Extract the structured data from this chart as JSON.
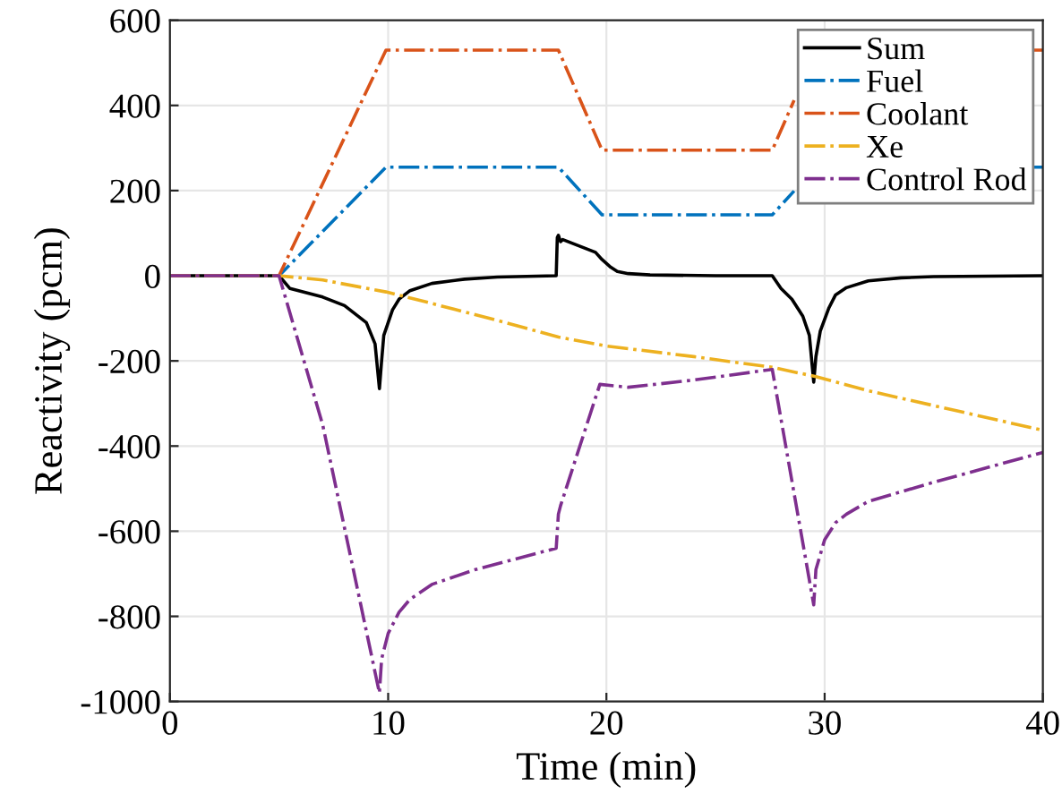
{
  "chart_data": {
    "type": "line",
    "xlabel": "Time (min)",
    "ylabel": "Reactivity (pcm)",
    "xlim": [
      0,
      40
    ],
    "ylim": [
      -1000,
      600
    ],
    "xticks": [
      0,
      10,
      20,
      30,
      40
    ],
    "yticks": [
      -1000,
      -800,
      -600,
      -400,
      -200,
      0,
      200,
      400,
      600
    ],
    "grid": true,
    "legend": "top right",
    "marker": "none",
    "series": [
      {
        "name": "Sum",
        "color": "#000000",
        "line_style": "solid",
        "x": [
          0,
          5,
          5.5,
          7,
          8,
          9,
          9.4,
          9.6,
          9.7,
          9.8,
          10.2,
          10.5,
          11,
          12,
          13.5,
          15,
          17.7,
          17.75,
          17.8,
          17.9,
          18,
          18.5,
          19,
          19.5,
          19.8,
          20.2,
          20.5,
          21,
          22,
          25,
          27.6,
          28,
          28.5,
          29,
          29.3,
          29.5,
          29.6,
          29.8,
          30.2,
          30.5,
          31,
          32,
          33.5,
          35,
          40
        ],
        "values": [
          0,
          0,
          -30,
          -50,
          -70,
          -110,
          -160,
          -265,
          -200,
          -140,
          -80,
          -55,
          -35,
          -18,
          -8,
          -3,
          0,
          90,
          95,
          80,
          85,
          75,
          65,
          55,
          38,
          20,
          10,
          5,
          2,
          0,
          0,
          -30,
          -55,
          -95,
          -140,
          -250,
          -190,
          -130,
          -75,
          -45,
          -28,
          -12,
          -5,
          -2,
          0
        ]
      },
      {
        "name": "Fuel",
        "color": "#0072bd",
        "line_style": "dashed",
        "x": [
          0,
          5,
          9.9,
          17.8,
          19.8,
          27.6,
          28.6,
          29.6,
          39.6,
          40
        ],
        "values": [
          0,
          0,
          255,
          255,
          143,
          143,
          199,
          null,
          255,
          255
        ]
      },
      {
        "name": "Coolant",
        "color": "#d95319",
        "line_style": "dashed",
        "x": [
          0,
          5,
          9.9,
          17.8,
          19.8,
          27.6,
          28.6,
          29.6,
          39.6,
          40
        ],
        "values": [
          0,
          0,
          530,
          530,
          295,
          295,
          412,
          null,
          530,
          530
        ]
      },
      {
        "name": "Xe",
        "color": "#edb120",
        "line_style": "dashed",
        "x": [
          0,
          5,
          7,
          9.9,
          12,
          15,
          17.8,
          20,
          24,
          27.6,
          29.6,
          32,
          35,
          40
        ],
        "values": [
          0,
          0,
          -10,
          -38,
          -65,
          -105,
          -144,
          -165,
          -190,
          -215,
          -237,
          -270,
          -305,
          -363
        ]
      },
      {
        "name": "Control Rod",
        "color": "#7e2f8e",
        "line_style": "dashed",
        "x": [
          0,
          5,
          7,
          9.6,
          9.7,
          10,
          10.5,
          11,
          12,
          14,
          17.7,
          17.8,
          17.9,
          19.7,
          21,
          24,
          27.6,
          29.5,
          29.6,
          30,
          30.5,
          31,
          32,
          35,
          40
        ],
        "values": [
          0,
          0,
          -350,
          -980,
          -900,
          -840,
          -790,
          -760,
          -725,
          -690,
          -640,
          -560,
          -540,
          -255,
          -262,
          -245,
          -220,
          -773,
          -690,
          -620,
          -580,
          -560,
          -530,
          -485,
          -415
        ]
      }
    ]
  }
}
